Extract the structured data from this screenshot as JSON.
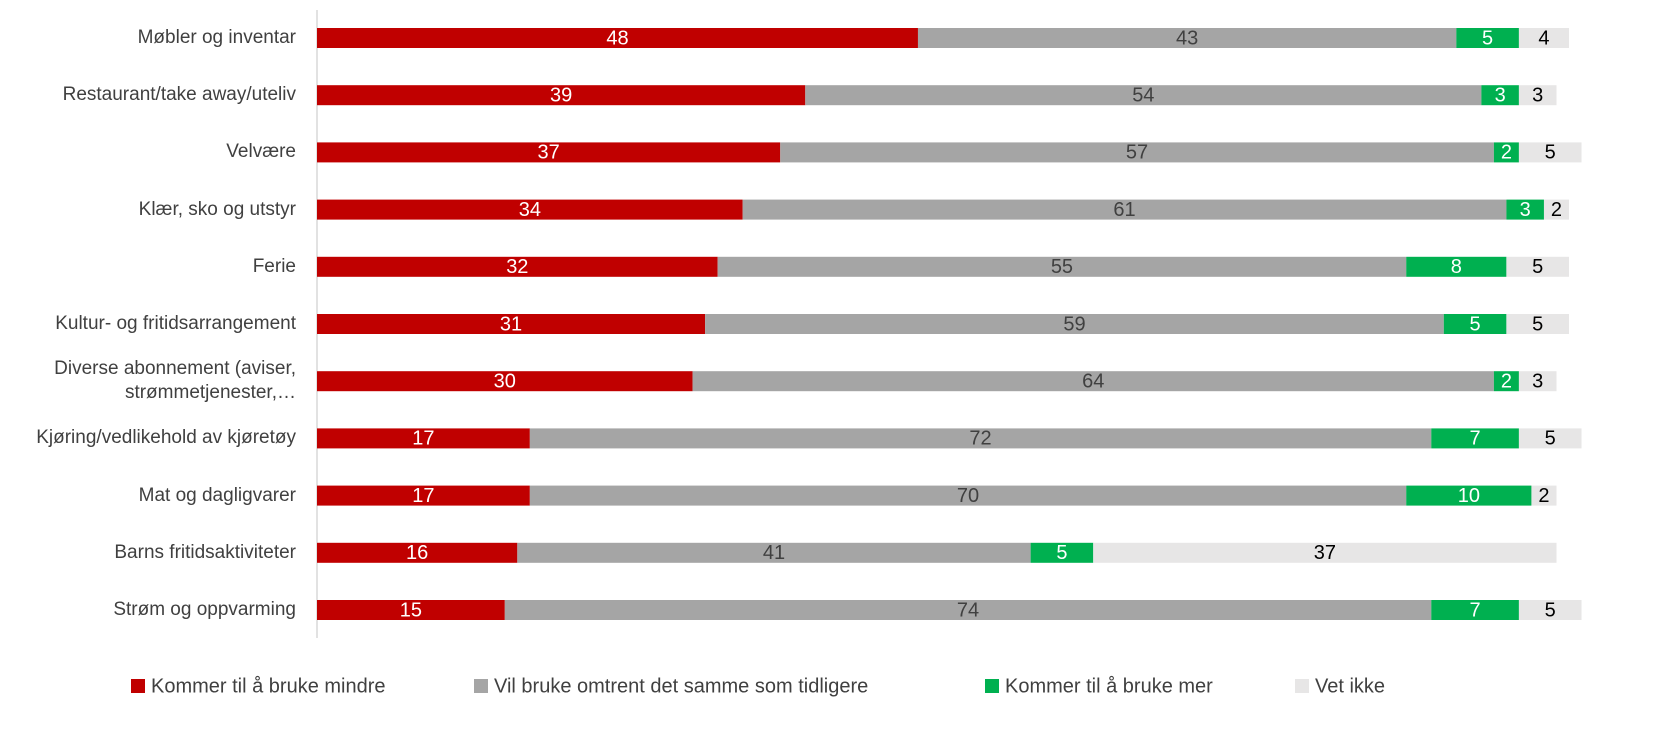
{
  "chart_data": {
    "type": "stacked-bar-horizontal",
    "categories": [
      "Møbler og inventar",
      "Restaurant/take away/uteliv",
      "Velvære",
      "Klær, sko og utstyr",
      "Ferie",
      "Kultur- og fritidsarrangement",
      "Diverse abonnement (aviser, strømmetjenester,…",
      "Kjøring/vedlikehold av kjøretøy",
      "Mat og dagligvarer",
      "Barns fritidsaktiviteter",
      "Strøm og oppvarming"
    ],
    "series": [
      {
        "name": "Kommer til å bruke mindre",
        "color": "#c00000",
        "label_color": "#ffffff",
        "values": [
          48,
          39,
          37,
          34,
          32,
          31,
          30,
          17,
          17,
          16,
          15
        ]
      },
      {
        "name": "Vil bruke omtrent det samme som tidligere",
        "color": "#a5a5a5",
        "label_color": "#404040",
        "values": [
          43,
          54,
          57,
          61,
          55,
          59,
          64,
          72,
          70,
          41,
          74
        ]
      },
      {
        "name": "Kommer til å bruke mer",
        "color": "#00b050",
        "label_color": "#ffffff",
        "values": [
          5,
          3,
          2,
          3,
          8,
          5,
          2,
          7,
          10,
          5,
          7
        ]
      },
      {
        "name": "Vet ikke",
        "color": "#e7e6e6",
        "label_color": "#000000",
        "values": [
          4,
          3,
          5,
          2,
          5,
          5,
          3,
          5,
          2,
          37,
          5
        ]
      }
    ],
    "xlim": [
      0,
      100
    ],
    "legend": "bottom"
  }
}
